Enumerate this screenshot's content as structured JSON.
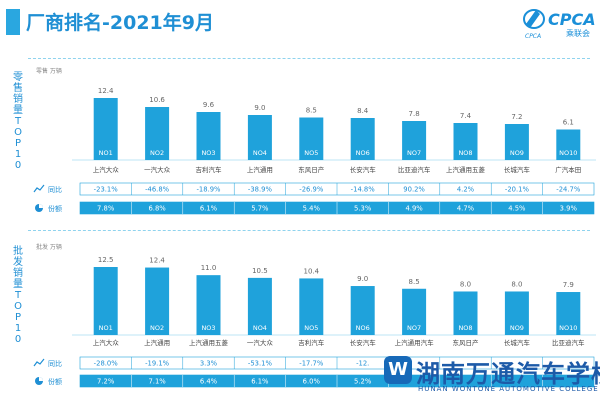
{
  "header": {
    "title": "厂商排名-2021年9月"
  },
  "logo": {
    "name": "CPCA",
    "sub": "乘联会",
    "abbr": "CPCA"
  },
  "watermark": {
    "text": "湖南万通汽车学校",
    "sub": "HUNAN WONTONE AUTOMOTIVE COLLEGE"
  },
  "colors": {
    "bar": "#1fa2db",
    "accent": "#1f8fd4",
    "nolabel": "#ffffff",
    "row_growth": "#ffffff",
    "row_share": "#1fa2db"
  },
  "chart_data": [
    {
      "type": "bar",
      "title": "零售销量TOP10",
      "units": "零售 万辆",
      "ylim": [
        0,
        12.4
      ],
      "categories": [
        "NO1",
        "NO2",
        "NO3",
        "NO4",
        "NO5",
        "NO6",
        "NO7",
        "NO8",
        "NO9",
        "NO10"
      ],
      "values": [
        12.4,
        10.6,
        9.6,
        9.0,
        8.5,
        8.4,
        7.8,
        7.4,
        7.2,
        6.1
      ],
      "manufacturers": [
        "上汽大众",
        "一汽大众",
        "吉利汽车",
        "上汽通用",
        "东风日产",
        "长安汽车",
        "比亚迪汽车",
        "上汽通用五菱",
        "长城汽车",
        "广汽本田"
      ],
      "table_rows": [
        {
          "label": "同比",
          "icon": "trend-icon",
          "values": [
            "-23.1%",
            "-46.8%",
            "-18.9%",
            "-38.9%",
            "-26.9%",
            "-14.8%",
            "90.2%",
            "4.2%",
            "-20.1%",
            "-24.7%"
          ]
        },
        {
          "label": "份额",
          "icon": "pie-icon",
          "values": [
            "7.8%",
            "6.8%",
            "6.1%",
            "5.7%",
            "5.4%",
            "5.3%",
            "4.9%",
            "4.7%",
            "4.5%",
            "3.9%"
          ]
        }
      ]
    },
    {
      "type": "bar",
      "title": "批发销量TOP10",
      "units": "批发 万辆",
      "ylim": [
        0,
        12.5
      ],
      "categories": [
        "NO1",
        "NO2",
        "NO3",
        "NO4",
        "NO5",
        "NO6",
        "NO7",
        "NO8",
        "NO9",
        "NO10"
      ],
      "values": [
        12.5,
        12.4,
        11.0,
        10.5,
        10.4,
        9.0,
        8.5,
        8.0,
        8.0,
        7.9
      ],
      "manufacturers": [
        "上汽大众",
        "上汽通用",
        "上汽通用五菱",
        "一汽大众",
        "吉利汽车",
        "长安汽车",
        "上汽通用汽车",
        "东风日产",
        "长城汽车",
        "比亚迪汽车"
      ],
      "table_rows": [
        {
          "label": "同比",
          "icon": "trend-icon",
          "values": [
            "-28.0%",
            "-19.1%",
            "3.3%",
            "-53.1%",
            "-17.7%",
            "-12.",
            "",
            "",
            "",
            ""
          ]
        },
        {
          "label": "份额",
          "icon": "pie-icon",
          "values": [
            "7.2%",
            "7.1%",
            "6.4%",
            "6.1%",
            "6.0%",
            "5.2%",
            "",
            "",
            "",
            ""
          ]
        }
      ]
    }
  ]
}
